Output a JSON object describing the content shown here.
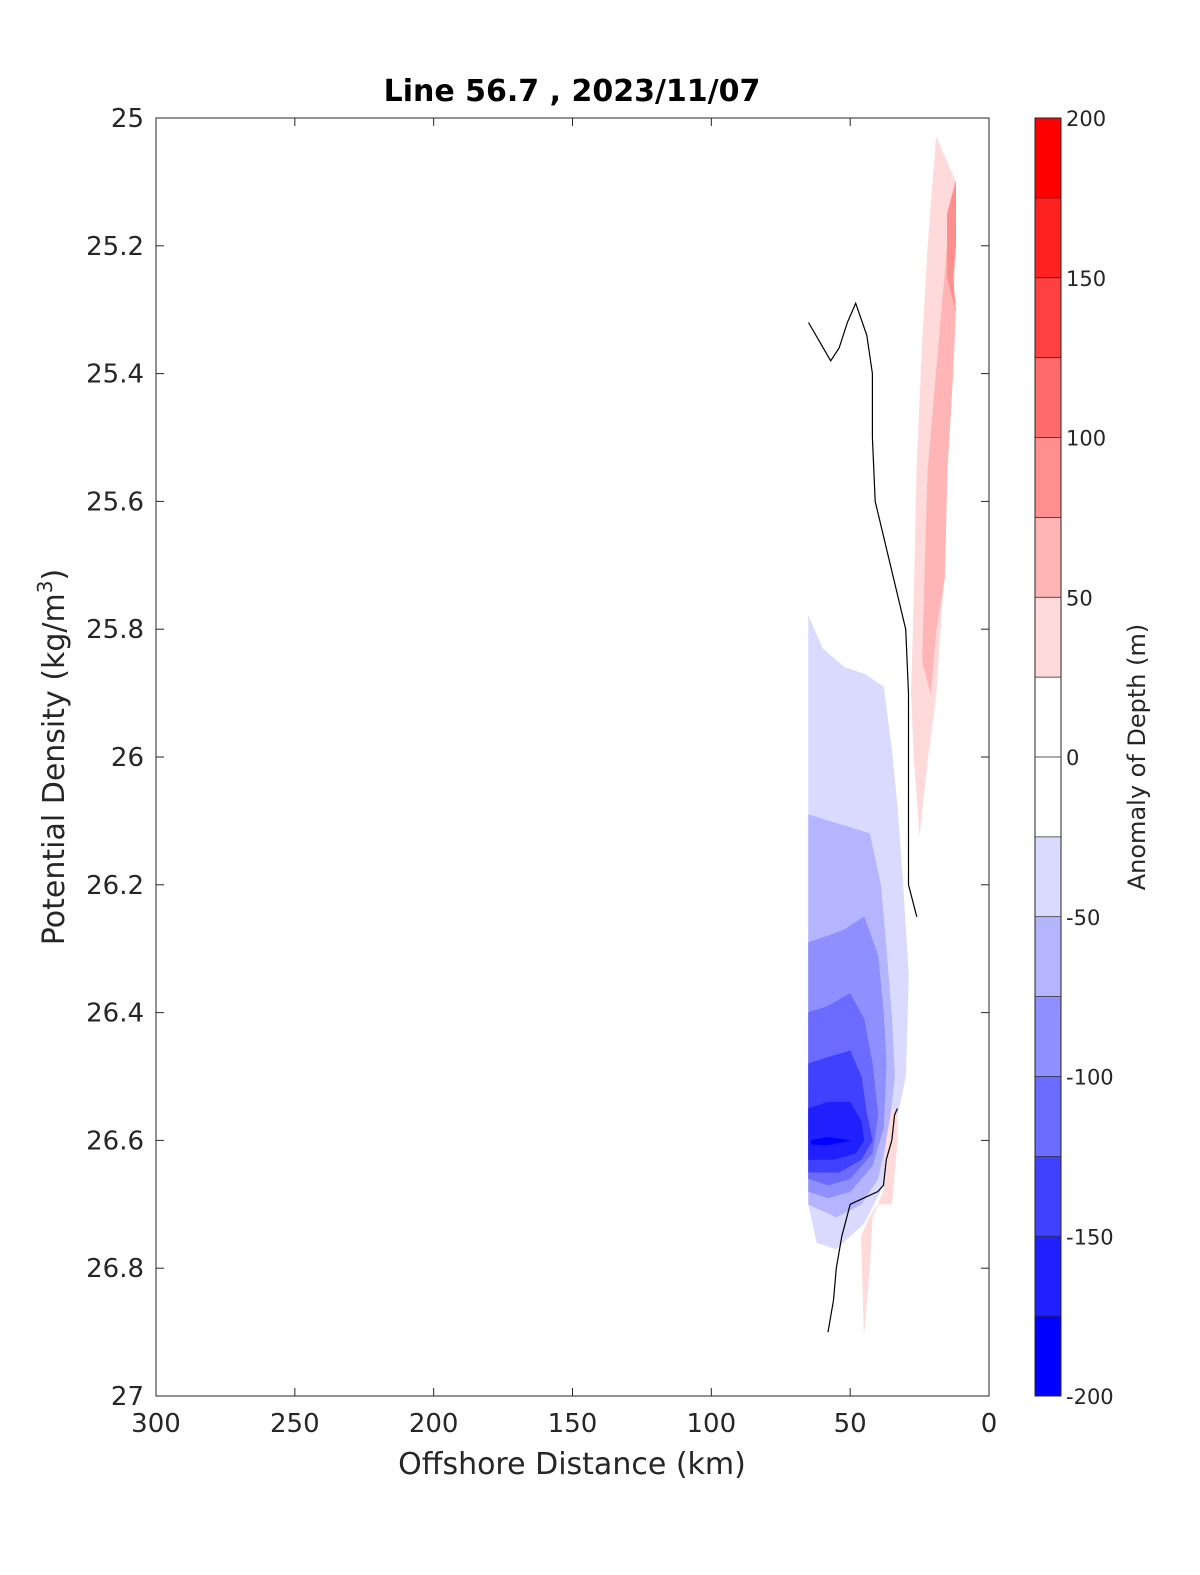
{
  "chart_data": {
    "type": "contour",
    "title": "Line 56.7 , 2023/11/07",
    "xlabel": "Offshore Distance (km)",
    "ylabel_main": "Potential Density (kg/m",
    "ylabel_sup": "3",
    "ylabel_tail": ")",
    "xlim": [
      300,
      0
    ],
    "ylim": [
      25,
      27
    ],
    "x_ticks": [
      "300",
      "250",
      "200",
      "150",
      "100",
      "50",
      "0"
    ],
    "y_ticks": [
      "25",
      "25.2",
      "25.4",
      "25.6",
      "25.8",
      "26",
      "26.2",
      "26.4",
      "26.6",
      "26.8",
      "27"
    ],
    "colorbar": {
      "label": "Anomaly of Depth (m)",
      "range": [
        -200,
        200
      ],
      "step": 25,
      "tick_labels": [
        "200",
        "150",
        "100",
        "50",
        "0",
        "-50",
        "-100",
        "-150",
        "-200"
      ],
      "colors": [
        "#0000ff",
        "#2020ff",
        "#4040ff",
        "#6b6bff",
        "#8f8fff",
        "#b5b5ff",
        "#dadaff",
        "#ffffff",
        "#ffffff",
        "#ffdada",
        "#ffb5b5",
        "#ff8f8f",
        "#ff6b6b",
        "#ff4040",
        "#ff2020",
        "#ff0000"
      ]
    },
    "filled_regions": [
      {
        "level": "-25 to -50",
        "color": "#dadaff",
        "points": [
          [
            65,
            25.78
          ],
          [
            60,
            25.83
          ],
          [
            52,
            25.86
          ],
          [
            45,
            25.87
          ],
          [
            38,
            25.89
          ],
          [
            35,
            25.99
          ],
          [
            33,
            26.08
          ],
          [
            31,
            26.2
          ],
          [
            29,
            26.34
          ],
          [
            30,
            26.5
          ],
          [
            34,
            26.58
          ],
          [
            38,
            26.67
          ],
          [
            45,
            26.73
          ],
          [
            55,
            26.77
          ],
          [
            62,
            26.76
          ],
          [
            65,
            26.7
          ]
        ]
      },
      {
        "level": "-50 to -75",
        "color": "#b5b5ff",
        "points": [
          [
            65,
            26.09
          ],
          [
            58,
            26.1
          ],
          [
            50,
            26.11
          ],
          [
            43,
            26.12
          ],
          [
            39,
            26.2
          ],
          [
            37,
            26.3
          ],
          [
            35,
            26.41
          ],
          [
            34,
            26.5
          ],
          [
            36,
            26.58
          ],
          [
            40,
            26.66
          ],
          [
            46,
            26.7
          ],
          [
            55,
            26.72
          ],
          [
            65,
            26.7
          ]
        ]
      },
      {
        "level": "-75 to -100",
        "color": "#8f8fff",
        "points": [
          [
            65,
            26.29
          ],
          [
            58,
            26.28
          ],
          [
            52,
            26.27
          ],
          [
            45,
            26.25
          ],
          [
            40,
            26.31
          ],
          [
            38,
            26.4
          ],
          [
            37,
            26.48
          ],
          [
            38,
            26.58
          ],
          [
            42,
            26.64
          ],
          [
            50,
            26.68
          ],
          [
            58,
            26.69
          ],
          [
            65,
            26.68
          ]
        ]
      },
      {
        "level": "-100 to -125",
        "color": "#6b6bff",
        "points": [
          [
            65,
            26.4
          ],
          [
            58,
            26.39
          ],
          [
            50,
            26.37
          ],
          [
            45,
            26.41
          ],
          [
            42,
            26.48
          ],
          [
            40,
            26.56
          ],
          [
            42,
            26.62
          ],
          [
            50,
            26.66
          ],
          [
            58,
            26.67
          ],
          [
            65,
            26.66
          ]
        ]
      },
      {
        "level": "-125 to -150",
        "color": "#4040ff",
        "points": [
          [
            65,
            26.48
          ],
          [
            58,
            26.47
          ],
          [
            50,
            26.46
          ],
          [
            46,
            26.5
          ],
          [
            44,
            26.56
          ],
          [
            42,
            26.6
          ],
          [
            46,
            26.63
          ],
          [
            54,
            26.65
          ],
          [
            65,
            26.65
          ]
        ]
      },
      {
        "level": "-150 to -175",
        "color": "#2020ff",
        "points": [
          [
            65,
            26.55
          ],
          [
            58,
            26.54
          ],
          [
            50,
            26.54
          ],
          [
            46,
            26.57
          ],
          [
            45,
            26.6
          ],
          [
            48,
            26.62
          ],
          [
            56,
            26.63
          ],
          [
            65,
            26.63
          ]
        ]
      },
      {
        "level": "-175 to -200",
        "color": "#0000ff",
        "points": [
          [
            64,
            26.6
          ],
          [
            58,
            26.595
          ],
          [
            50,
            26.6
          ],
          [
            58,
            26.607
          ],
          [
            64,
            26.606
          ]
        ]
      },
      {
        "level": "25 to 50",
        "color": "#ffdada",
        "points": [
          [
            19,
            25.03
          ],
          [
            12,
            25.1
          ],
          [
            12,
            25.2
          ],
          [
            13,
            25.3
          ],
          [
            15,
            25.5
          ],
          [
            16,
            25.7
          ],
          [
            19,
            25.9
          ],
          [
            22,
            26.0
          ],
          [
            25,
            26.12
          ],
          [
            27,
            26.0
          ],
          [
            28,
            25.9
          ],
          [
            27,
            25.75
          ],
          [
            26,
            25.55
          ],
          [
            24,
            25.35
          ],
          [
            22,
            25.2
          ]
        ]
      },
      {
        "level": "50 to 75",
        "color": "#ffb5b5",
        "points": [
          [
            15,
            25.2
          ],
          [
            12,
            25.3
          ],
          [
            13,
            25.4
          ],
          [
            15,
            25.55
          ],
          [
            16,
            25.72
          ],
          [
            19,
            25.8
          ],
          [
            21,
            25.9
          ],
          [
            24,
            25.85
          ],
          [
            23,
            25.7
          ],
          [
            22,
            25.55
          ],
          [
            19,
            25.4
          ]
        ]
      },
      {
        "level": "75 to 100",
        "color": "#ff8f8f",
        "points": [
          [
            12,
            25.1
          ],
          [
            12,
            25.2
          ],
          [
            13,
            25.25
          ],
          [
            12,
            25.3
          ],
          [
            15,
            25.25
          ],
          [
            15,
            25.15
          ]
        ]
      },
      {
        "level": "25 to 50",
        "color": "#ffdada",
        "points": [
          [
            35,
            26.55
          ],
          [
            33,
            26.56
          ],
          [
            33,
            26.6
          ],
          [
            35,
            26.7
          ],
          [
            40,
            26.7
          ],
          [
            43,
            26.72
          ],
          [
            46,
            26.75
          ],
          [
            45,
            26.9
          ],
          [
            43,
            26.8
          ],
          [
            42,
            26.72
          ],
          [
            38,
            26.68
          ],
          [
            37,
            26.6
          ]
        ]
      }
    ],
    "contour_lines": [
      {
        "level": "0",
        "points": [
          [
            65,
            25.32
          ],
          [
            61,
            25.35
          ],
          [
            57,
            25.38
          ],
          [
            54,
            25.36
          ],
          [
            51,
            25.32
          ],
          [
            48,
            25.29
          ],
          [
            44,
            25.34
          ],
          [
            42,
            25.4
          ],
          [
            42,
            25.5
          ],
          [
            41,
            25.6
          ],
          [
            30,
            25.8
          ],
          [
            29,
            25.9
          ],
          [
            29,
            26.1
          ],
          [
            29,
            26.2
          ],
          [
            26,
            26.25
          ]
        ]
      },
      {
        "level": "0",
        "points": [
          [
            33,
            26.55
          ],
          [
            34,
            26.56
          ],
          [
            35,
            26.6
          ],
          [
            37,
            26.63
          ],
          [
            38,
            26.67
          ],
          [
            40,
            26.68
          ],
          [
            45,
            26.69
          ],
          [
            50,
            26.7
          ],
          [
            53,
            26.75
          ],
          [
            55,
            26.8
          ],
          [
            56,
            26.85
          ],
          [
            58,
            26.9
          ]
        ]
      }
    ]
  }
}
